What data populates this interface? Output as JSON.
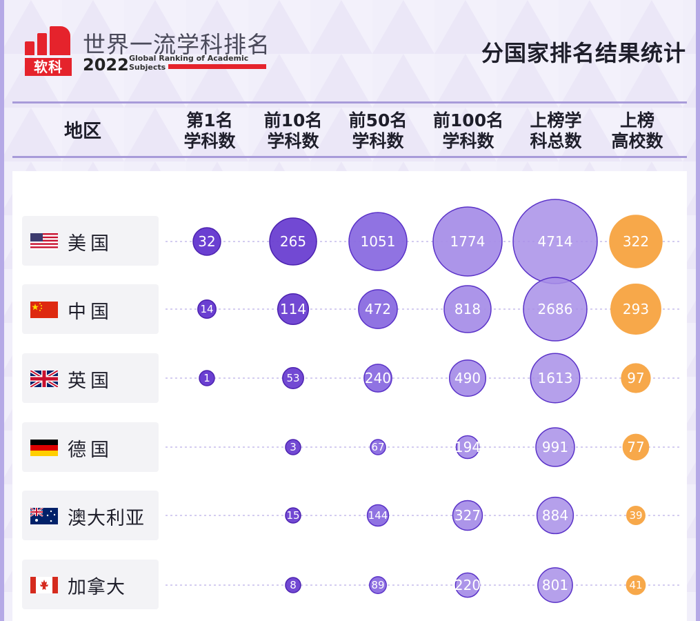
{
  "brand": {
    "logo_text": "软科",
    "title": "世界一流学科排名",
    "year": "2022",
    "subtitle": "Global Ranking of Academic Subjects"
  },
  "page_title": "分国家排名结果统计",
  "columns": {
    "region": "地区",
    "items": [
      {
        "line1": "第1名",
        "line2": "学科数"
      },
      {
        "line1": "前10名",
        "line2": "学科数"
      },
      {
        "line1": "前50名",
        "line2": "学科数"
      },
      {
        "line1": "前100名",
        "line2": "学科数"
      },
      {
        "line1": "上榜学",
        "line2": "科总数"
      },
      {
        "line1": "上榜",
        "line2": "高校数"
      }
    ]
  },
  "colors": {
    "purple_dark": "#6a3fd1",
    "purple_mid": "#8a6be0",
    "purple_light": "#a88fe8",
    "orange": "#f7a84a",
    "frame": "#b5a9e6"
  },
  "chart_data": {
    "type": "table",
    "categories": [
      "美国",
      "中国",
      "英国",
      "德国",
      "澳大利亚",
      "加拿大"
    ],
    "flags": [
      "flag-us",
      "flag-cn",
      "flag-uk",
      "flag-de",
      "flag-au",
      "flag-ca"
    ],
    "series": [
      {
        "name": "第1名学科数",
        "values": [
          32,
          14,
          1,
          null,
          null,
          null
        ]
      },
      {
        "name": "前10名学科数",
        "values": [
          265,
          114,
          53,
          3,
          15,
          8
        ]
      },
      {
        "name": "前50名学科数",
        "values": [
          1051,
          472,
          240,
          67,
          144,
          89
        ]
      },
      {
        "name": "前100名学科数",
        "values": [
          1774,
          818,
          490,
          194,
          327,
          220
        ]
      },
      {
        "name": "上榜学科总数",
        "values": [
          4714,
          2686,
          1613,
          991,
          884,
          801
        ]
      },
      {
        "name": "上榜高校数",
        "values": [
          322,
          293,
          97,
          77,
          39,
          41
        ]
      }
    ]
  }
}
